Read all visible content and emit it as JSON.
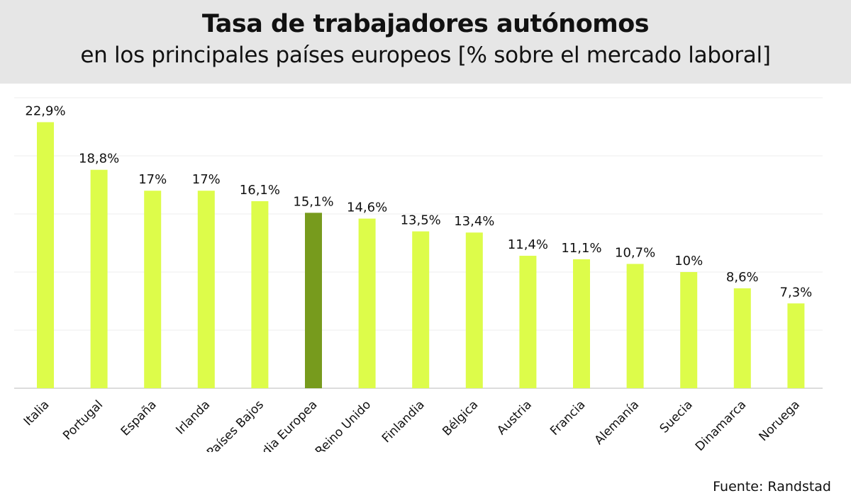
{
  "header": {
    "title": "Tasa de trabajadores autónomos",
    "subtitle": "en los principales países europeos [% sobre el mercado laboral]"
  },
  "source": "Fuente: Randstad",
  "colors": {
    "bar": "#ddfc4a",
    "highlight": "#779b1d",
    "header_bg": "#e6e6e6",
    "grid": "#eeeeee",
    "axis": "#d0d0d0"
  },
  "chart_data": {
    "type": "bar",
    "categories": [
      "Italia",
      "Portugal",
      "España",
      "Irlanda",
      "Países Bajos",
      "Media Europea",
      "Reino Unido",
      "Finlandia",
      "Bélgica",
      "Austria",
      "Francia",
      "Alemanía",
      "Suecia",
      "Dinamarca",
      "Noruega"
    ],
    "values": [
      22.9,
      18.8,
      17.0,
      17.0,
      16.1,
      15.1,
      14.6,
      13.5,
      13.4,
      11.4,
      11.1,
      10.7,
      10.0,
      8.6,
      7.3
    ],
    "value_labels": [
      "22,9%",
      "18,8%",
      "17%",
      "17%",
      "16,1%",
      "15,1%",
      "14,6%",
      "13,5%",
      "13,4%",
      "11,4%",
      "11,1%",
      "10,7%",
      "10%",
      "8,6%",
      "7,3%"
    ],
    "highlight_index": 5,
    "ylim": [
      0,
      25
    ],
    "grid": true,
    "xlabel": "",
    "ylabel": ""
  }
}
